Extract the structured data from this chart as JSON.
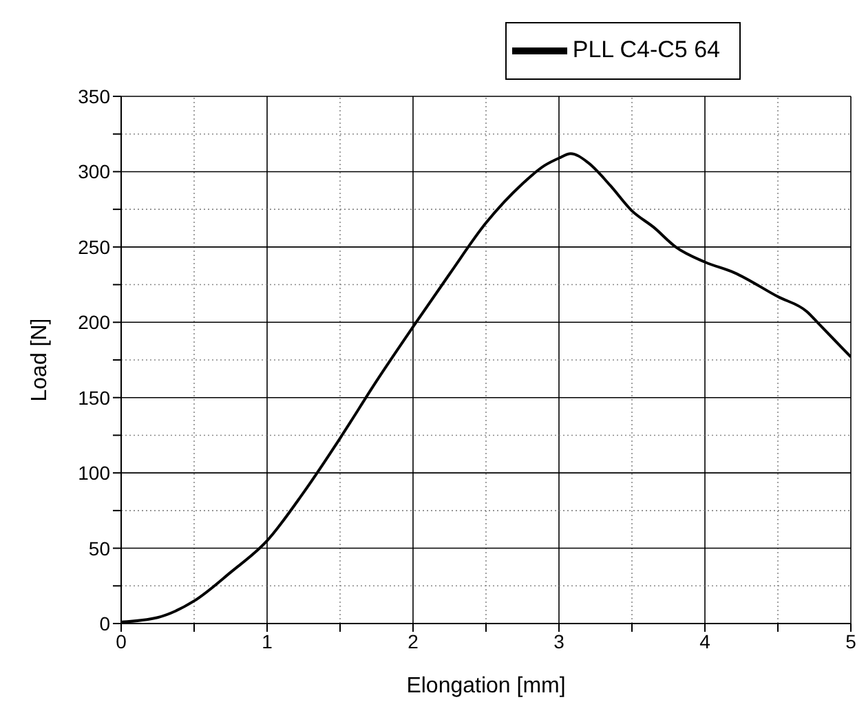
{
  "chart_data": {
    "type": "line",
    "xlabel": "Elongation [mm]",
    "ylabel": "Load [N]",
    "x": [
      0,
      0.25,
      0.5,
      0.75,
      1,
      1.25,
      1.5,
      1.75,
      2,
      2.25,
      2.5,
      2.75,
      2.9,
      3,
      3.08,
      3.2,
      3.35,
      3.5,
      3.65,
      3.8,
      4,
      4.2,
      4.5,
      4.7,
      4.78,
      4.9,
      5
    ],
    "series": [
      {
        "name": "PLL C4-C5 64",
        "color": "#000000",
        "values": [
          1,
          4,
          15,
          34,
          55,
          87,
          123,
          161,
          197,
          232,
          266,
          292,
          304,
          309,
          312,
          306,
          291,
          274,
          263,
          250,
          240,
          233,
          217,
          207,
          199,
          187,
          177
        ]
      }
    ],
    "xlim": [
      0,
      5
    ],
    "ylim": [
      0,
      350
    ],
    "xticks": [
      0,
      {
        "value": 0.5,
        "label": null
      },
      1,
      {
        "value": 1.5,
        "label": null
      },
      2,
      {
        "value": 2.5,
        "label": null
      },
      3,
      {
        "value": 3.5,
        "label": null
      },
      4,
      {
        "value": 4.5,
        "label": null
      },
      5
    ],
    "yticks": [
      0,
      {
        "value": 25,
        "label": null
      },
      50,
      {
        "value": 75,
        "label": null
      },
      100,
      {
        "value": 125,
        "label": null
      },
      150,
      {
        "value": 175,
        "label": null
      },
      200,
      {
        "value": 225,
        "label": null
      },
      250,
      {
        "value": 275,
        "label": null
      },
      300,
      {
        "value": 325,
        "label": null
      },
      350
    ],
    "grid": true,
    "legend": "top right",
    "marker": "none",
    "line_style": "solid"
  }
}
